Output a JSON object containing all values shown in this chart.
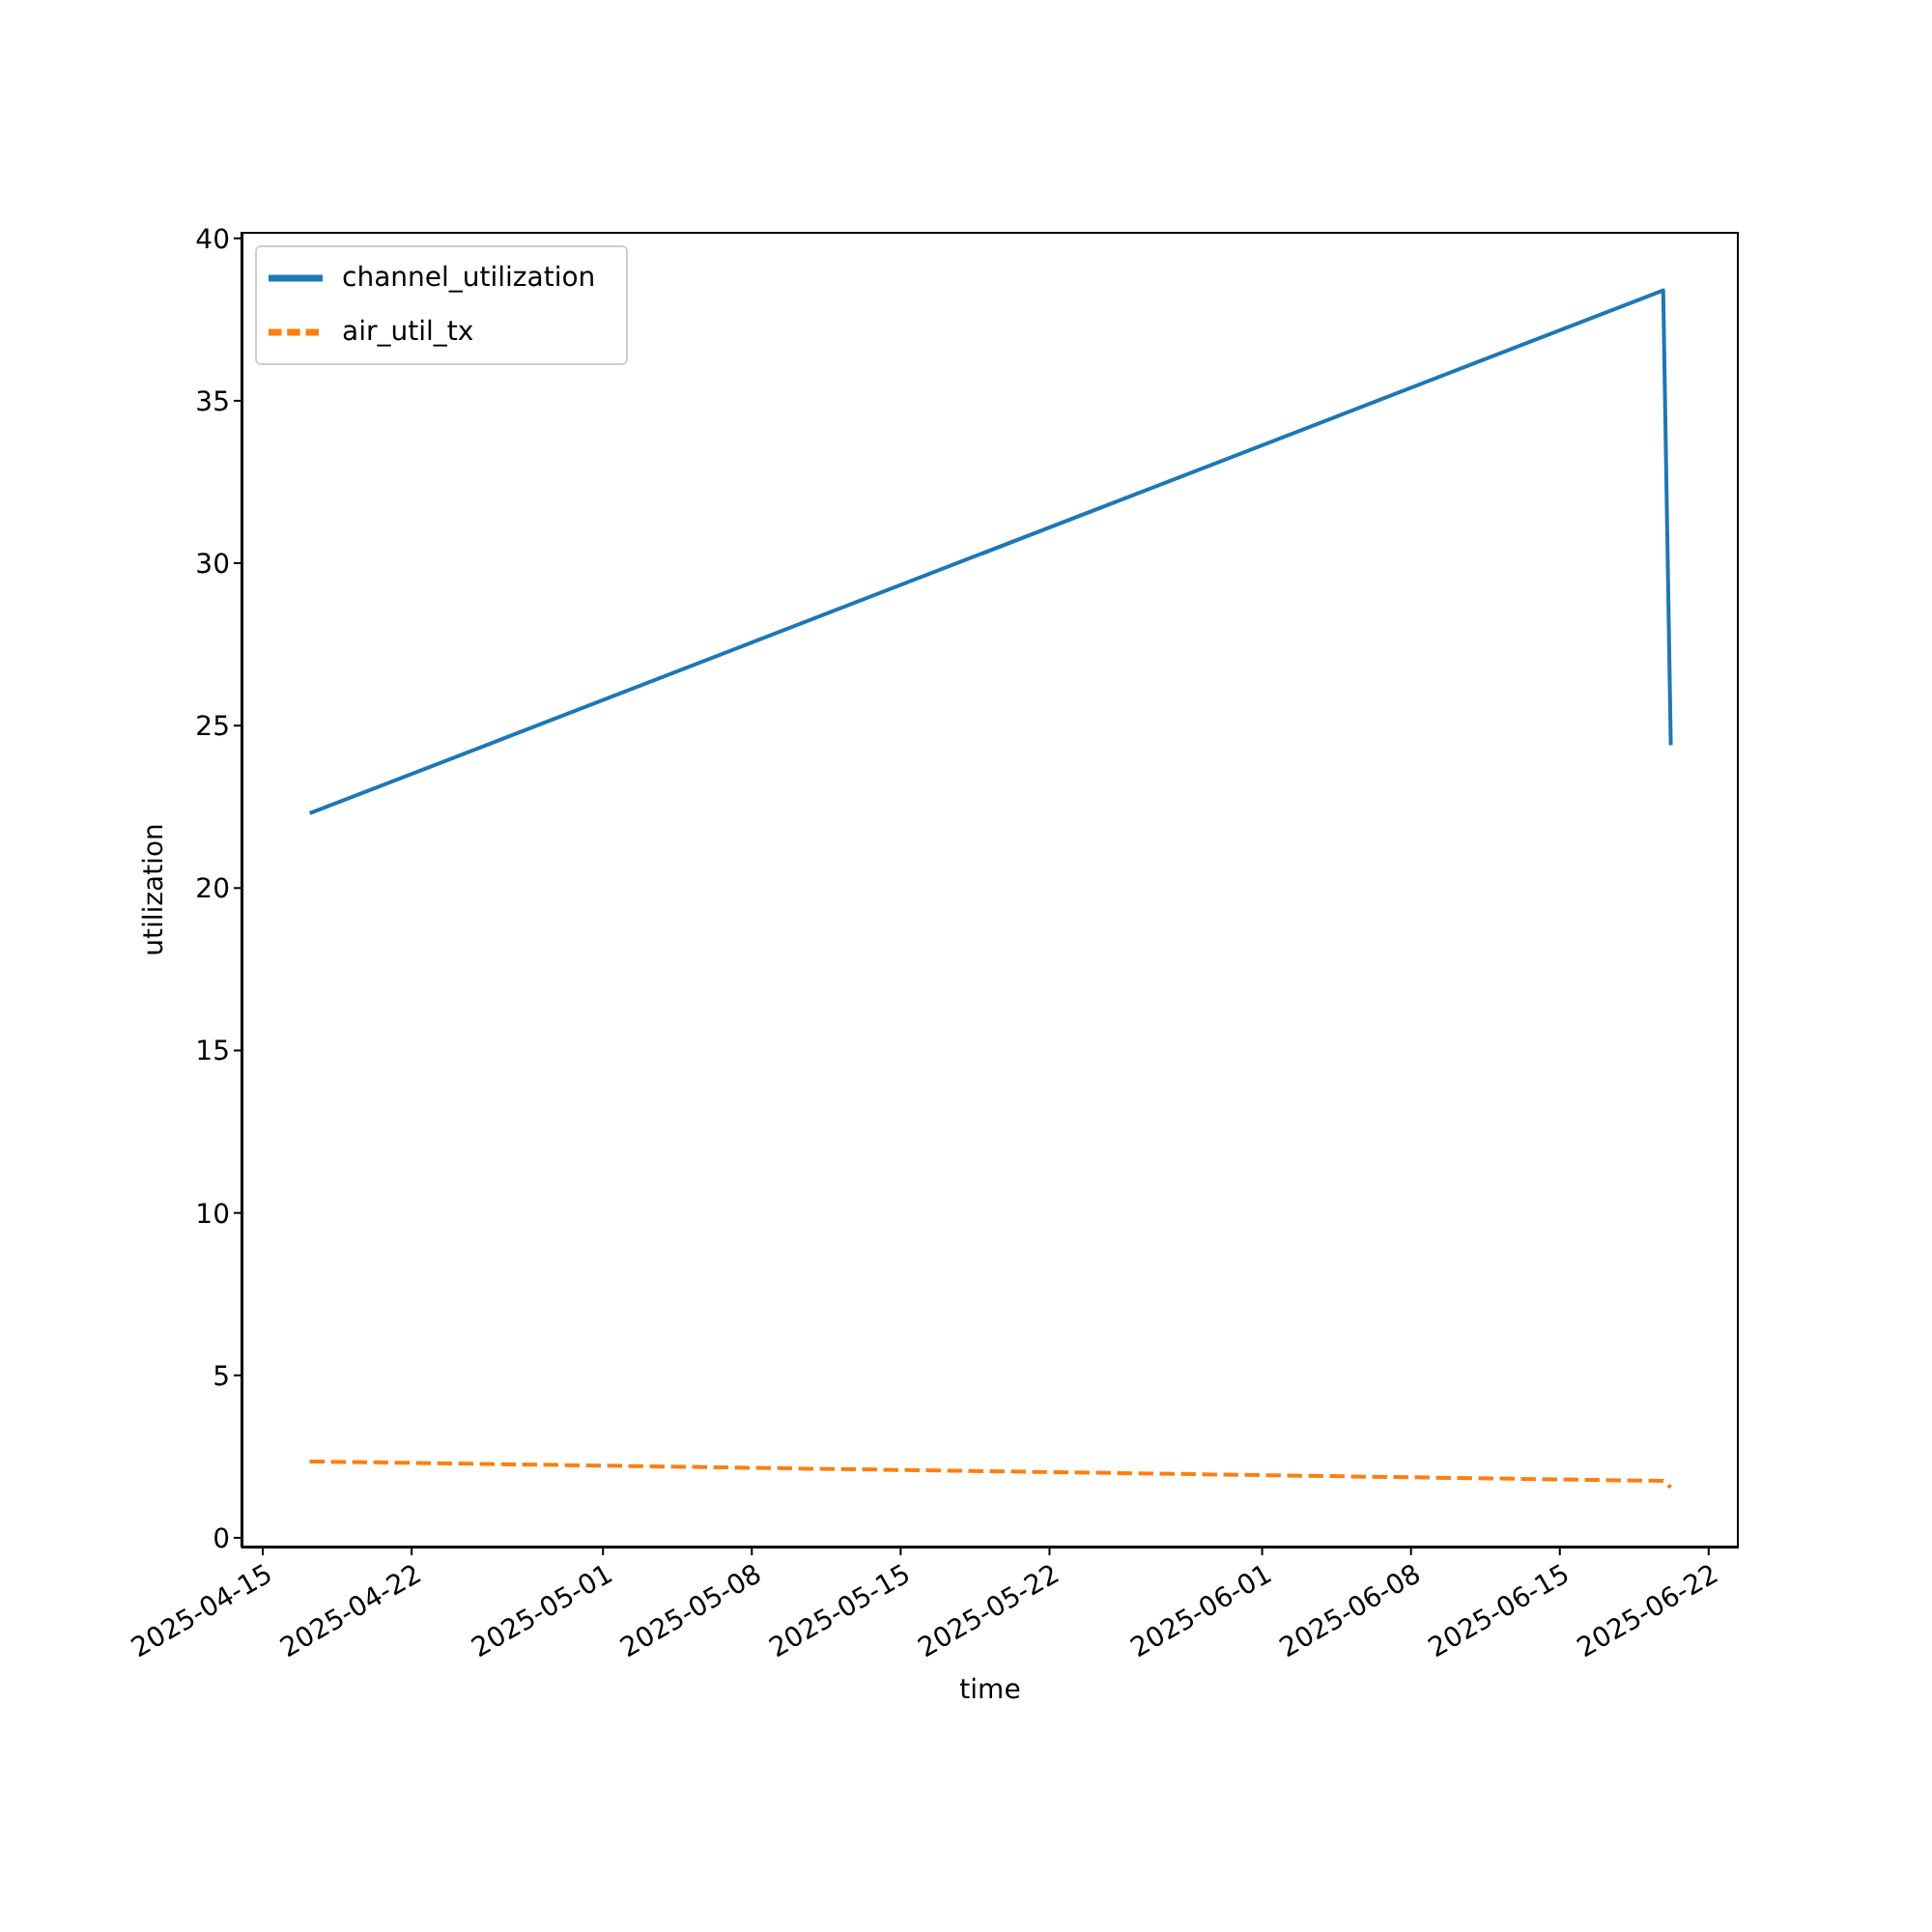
{
  "chart_data": {
    "type": "line",
    "xlabel": "time",
    "ylabel": "utilization",
    "x": [
      "2025-04-17T05:00",
      "2025-06-19T20:40",
      "2025-06-20T05:15"
    ],
    "series": [
      {
        "name": "channel_utilization",
        "color": "#1f77b4",
        "values": [
          22.3,
          38.4,
          24.4
        ],
        "line_style": "solid"
      },
      {
        "name": "air_util_tx",
        "color": "#ff7f0e",
        "values": [
          2.35,
          1.75,
          1.55
        ],
        "line_style": "dashed"
      }
    ],
    "xlim": [
      "2025-04-14T00:00",
      "2025-06-23T10:00"
    ],
    "xticks": [
      "2025-04-15",
      "2025-04-22",
      "2025-05-01",
      "2025-05-08",
      "2025-05-15",
      "2025-05-22",
      "2025-06-01",
      "2025-06-08",
      "2025-06-15",
      "2025-06-22"
    ],
    "ylim": [
      -0.3,
      40.2
    ],
    "yticks": [
      0,
      5,
      10,
      15,
      20,
      25,
      30,
      35,
      40
    ],
    "legend": "top left",
    "marker": "none"
  }
}
